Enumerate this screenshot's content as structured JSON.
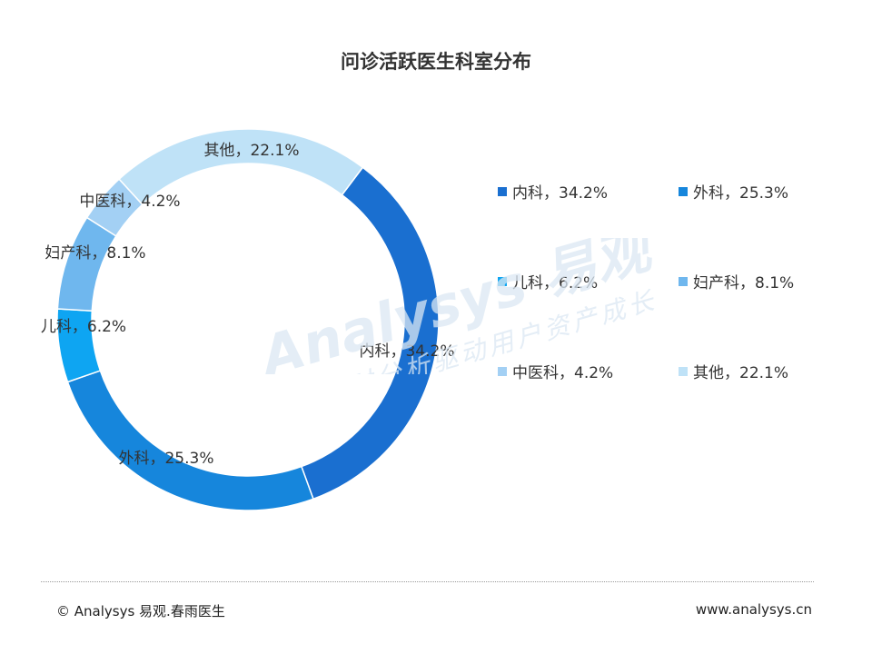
{
  "chart_data": {
    "type": "pie",
    "title": "问诊活跃医生科室分布",
    "categories": [
      "内科",
      "外科",
      "儿科",
      "妇产科",
      "中医科",
      "其他"
    ],
    "values": [
      34.2,
      25.3,
      6.2,
      8.1,
      4.2,
      22.1
    ],
    "labels": [
      "内科，34.2%",
      "外科，25.3%",
      "儿科，6.2%",
      "妇产科，8.1%",
      "中医科，4.2%",
      "其他，22.1%"
    ],
    "colors": [
      "#1a6fd0",
      "#1686dc",
      "#0ea5f2",
      "#6fb7ee",
      "#a3d0f4",
      "#bfe2f7"
    ],
    "style": "donut",
    "legend_position": "right"
  },
  "watermark": {
    "brand": "Analysys 易观",
    "slogan": "实时分析驱动用户资产成长"
  },
  "footer": {
    "copyright": "© Analysys 易观.春雨医生",
    "website": "www.analysys.cn"
  }
}
